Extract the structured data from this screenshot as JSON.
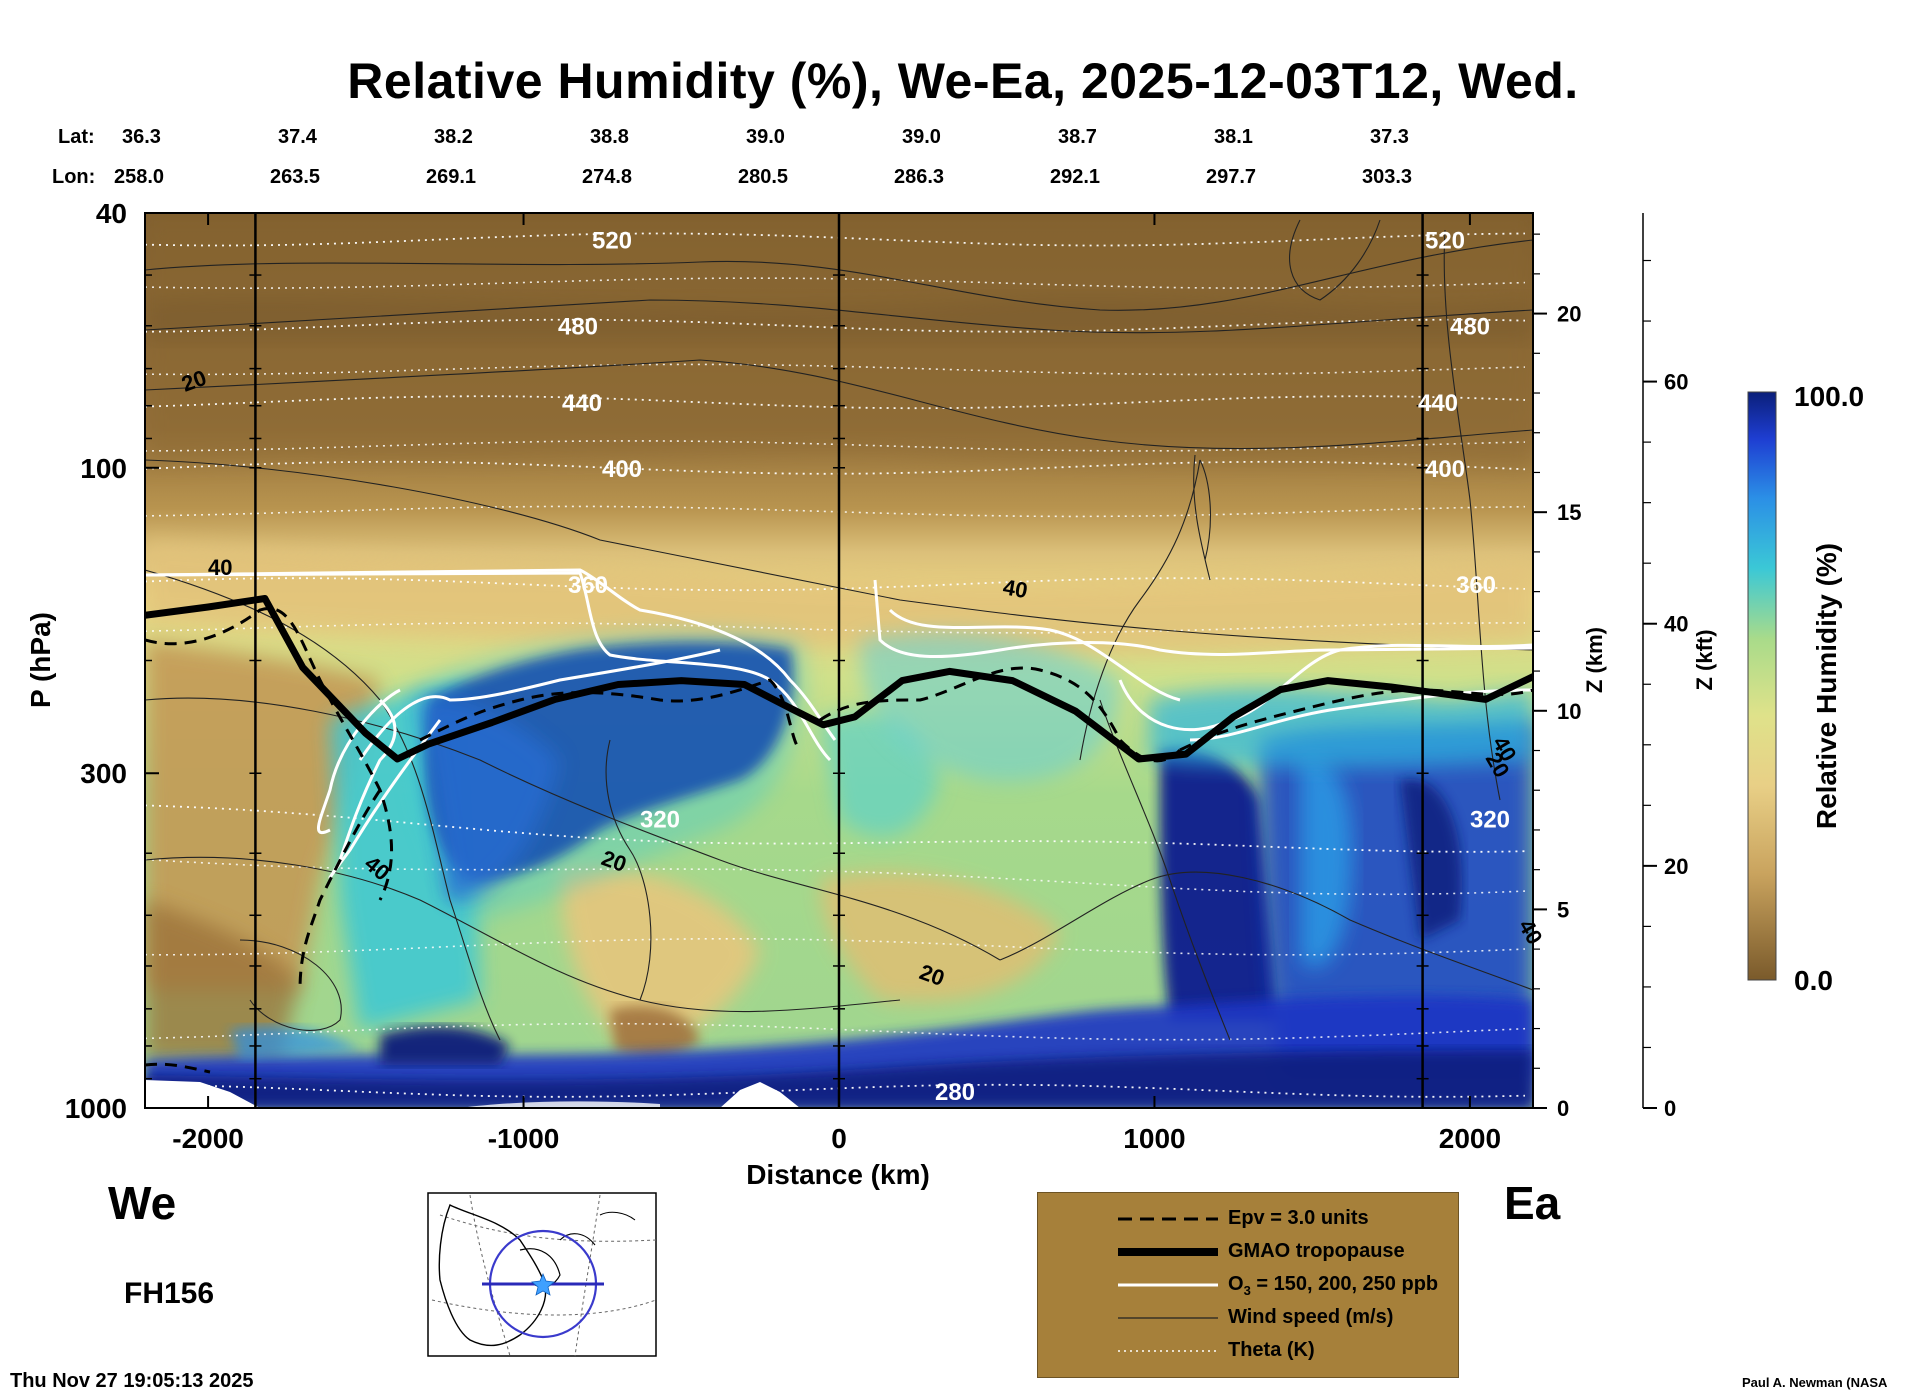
{
  "title": "Relative Humidity (%), We-Ea, 2025-12-03T12, Wed.",
  "coords": {
    "lat_label": "Lat:",
    "lon_label": "Lon:",
    "lat": [
      "36.3",
      "37.4",
      "38.2",
      "38.8",
      "39.0",
      "39.0",
      "38.7",
      "38.1",
      "37.3"
    ],
    "lon": [
      "258.0",
      "263.5",
      "269.1",
      "274.8",
      "280.5",
      "286.3",
      "292.1",
      "297.7",
      "303.3"
    ]
  },
  "chart_data": {
    "type": "heatmap",
    "title": "Relative Humidity (%), We-Ea, 2025-12-03T12, Wed.",
    "xlabel": "Distance (km)",
    "ylabel": "P (hPa)",
    "y2label": "Z (km)",
    "y3label": "Z (kft)",
    "colorbar_label": "Relative Humidity (%)",
    "xlim": [
      -2200,
      2200
    ],
    "ylim": [
      1000,
      40
    ],
    "yscale": "log",
    "x_ticks": [
      -2000,
      -1000,
      0,
      1000,
      2000
    ],
    "y_ticks": [
      40,
      100,
      300,
      1000
    ],
    "z_km_ticks": [
      0,
      5,
      10,
      15,
      20
    ],
    "z_kft_ticks": [
      0,
      20,
      40,
      60
    ],
    "colorbar": {
      "min": "0.0",
      "max": "100.0"
    },
    "vertical_markers_km": [
      -1850,
      0,
      1850
    ],
    "theta_levels": [
      {
        "value": "520",
        "p": 44
      },
      {
        "value": "480",
        "p": 60
      },
      {
        "value": "440",
        "p": 79
      },
      {
        "value": "400",
        "p": 100
      },
      {
        "value": "360",
        "p": 152
      },
      {
        "value": "320",
        "p": 353
      },
      {
        "value": "280",
        "p": 940
      }
    ],
    "tropopause": [
      [
        -2200,
        170
      ],
      [
        -2000,
        165
      ],
      [
        -1820,
        160
      ],
      [
        -1700,
        205
      ],
      [
        -1500,
        260
      ],
      [
        -1400,
        285
      ],
      [
        -1300,
        270
      ],
      [
        -1100,
        250
      ],
      [
        -900,
        230
      ],
      [
        -700,
        218
      ],
      [
        -500,
        215
      ],
      [
        -300,
        218
      ],
      [
        -150,
        238
      ],
      [
        -50,
        252
      ],
      [
        50,
        245
      ],
      [
        200,
        215
      ],
      [
        350,
        208
      ],
      [
        550,
        215
      ],
      [
        750,
        240
      ],
      [
        950,
        285
      ],
      [
        1100,
        280
      ],
      [
        1250,
        245
      ],
      [
        1400,
        222
      ],
      [
        1550,
        215
      ],
      [
        1750,
        220
      ],
      [
        1900,
        225
      ],
      [
        2050,
        230
      ],
      [
        2200,
        212
      ]
    ],
    "wind_labels": [
      "20",
      "40",
      "40",
      "20",
      "40",
      "20",
      "40",
      "40",
      "20"
    ],
    "legend": [
      {
        "style": "dashed-black",
        "label": "Epv = 3.0 units"
      },
      {
        "style": "thick-black",
        "label": "GMAO tropopause"
      },
      {
        "style": "white",
        "label_prefix": "O",
        "label_sub": "3",
        "label_suffix": " = 150, 200, 250 ppb"
      },
      {
        "style": "thin-black",
        "label": "Wind speed (m/s)"
      },
      {
        "style": "dotted-white",
        "label": "Theta (K)"
      }
    ]
  },
  "we_label": "We",
  "ea_label": "Ea",
  "forecast_hour": "FH156",
  "timestamp": "Thu Nov 27 19:05:13 2025",
  "credit": "Paul A. Newman (NASA",
  "colors": {
    "rh_dry": "#7a5a2b",
    "rh_tan": "#d6b574",
    "rh_light": "#e4d07c",
    "rh_green": "#a9db8a",
    "rh_cyan": "#3bc8d6",
    "rh_blue": "#1e5ad8",
    "rh_navy": "#0b1f7a",
    "legend_bg": "#a6803a"
  }
}
